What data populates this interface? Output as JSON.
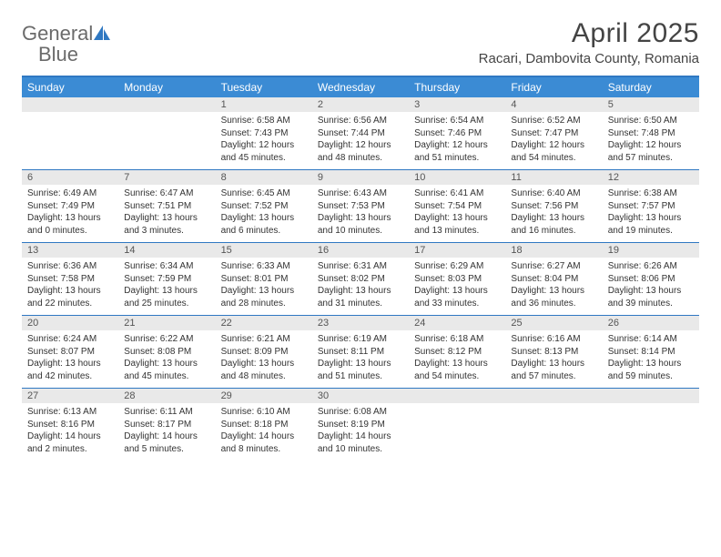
{
  "logo": {
    "text1": "General",
    "text2": "Blue",
    "icon_color": "#2f78c2"
  },
  "title": "April 2025",
  "location": "Racari, Dambovita County, Romania",
  "colors": {
    "header_bg": "#3b8bd4",
    "border": "#2f78c2",
    "daynum_bg": "#e9e9e9",
    "text": "#333333",
    "logo_gray": "#6b6b6b"
  },
  "day_names": [
    "Sunday",
    "Monday",
    "Tuesday",
    "Wednesday",
    "Thursday",
    "Friday",
    "Saturday"
  ],
  "weeks": [
    [
      {
        "n": "",
        "sunrise": "",
        "sunset": "",
        "day1": "",
        "day2": ""
      },
      {
        "n": "",
        "sunrise": "",
        "sunset": "",
        "day1": "",
        "day2": ""
      },
      {
        "n": "1",
        "sunrise": "Sunrise: 6:58 AM",
        "sunset": "Sunset: 7:43 PM",
        "day1": "Daylight: 12 hours",
        "day2": "and 45 minutes."
      },
      {
        "n": "2",
        "sunrise": "Sunrise: 6:56 AM",
        "sunset": "Sunset: 7:44 PM",
        "day1": "Daylight: 12 hours",
        "day2": "and 48 minutes."
      },
      {
        "n": "3",
        "sunrise": "Sunrise: 6:54 AM",
        "sunset": "Sunset: 7:46 PM",
        "day1": "Daylight: 12 hours",
        "day2": "and 51 minutes."
      },
      {
        "n": "4",
        "sunrise": "Sunrise: 6:52 AM",
        "sunset": "Sunset: 7:47 PM",
        "day1": "Daylight: 12 hours",
        "day2": "and 54 minutes."
      },
      {
        "n": "5",
        "sunrise": "Sunrise: 6:50 AM",
        "sunset": "Sunset: 7:48 PM",
        "day1": "Daylight: 12 hours",
        "day2": "and 57 minutes."
      }
    ],
    [
      {
        "n": "6",
        "sunrise": "Sunrise: 6:49 AM",
        "sunset": "Sunset: 7:49 PM",
        "day1": "Daylight: 13 hours",
        "day2": "and 0 minutes."
      },
      {
        "n": "7",
        "sunrise": "Sunrise: 6:47 AM",
        "sunset": "Sunset: 7:51 PM",
        "day1": "Daylight: 13 hours",
        "day2": "and 3 minutes."
      },
      {
        "n": "8",
        "sunrise": "Sunrise: 6:45 AM",
        "sunset": "Sunset: 7:52 PM",
        "day1": "Daylight: 13 hours",
        "day2": "and 6 minutes."
      },
      {
        "n": "9",
        "sunrise": "Sunrise: 6:43 AM",
        "sunset": "Sunset: 7:53 PM",
        "day1": "Daylight: 13 hours",
        "day2": "and 10 minutes."
      },
      {
        "n": "10",
        "sunrise": "Sunrise: 6:41 AM",
        "sunset": "Sunset: 7:54 PM",
        "day1": "Daylight: 13 hours",
        "day2": "and 13 minutes."
      },
      {
        "n": "11",
        "sunrise": "Sunrise: 6:40 AM",
        "sunset": "Sunset: 7:56 PM",
        "day1": "Daylight: 13 hours",
        "day2": "and 16 minutes."
      },
      {
        "n": "12",
        "sunrise": "Sunrise: 6:38 AM",
        "sunset": "Sunset: 7:57 PM",
        "day1": "Daylight: 13 hours",
        "day2": "and 19 minutes."
      }
    ],
    [
      {
        "n": "13",
        "sunrise": "Sunrise: 6:36 AM",
        "sunset": "Sunset: 7:58 PM",
        "day1": "Daylight: 13 hours",
        "day2": "and 22 minutes."
      },
      {
        "n": "14",
        "sunrise": "Sunrise: 6:34 AM",
        "sunset": "Sunset: 7:59 PM",
        "day1": "Daylight: 13 hours",
        "day2": "and 25 minutes."
      },
      {
        "n": "15",
        "sunrise": "Sunrise: 6:33 AM",
        "sunset": "Sunset: 8:01 PM",
        "day1": "Daylight: 13 hours",
        "day2": "and 28 minutes."
      },
      {
        "n": "16",
        "sunrise": "Sunrise: 6:31 AM",
        "sunset": "Sunset: 8:02 PM",
        "day1": "Daylight: 13 hours",
        "day2": "and 31 minutes."
      },
      {
        "n": "17",
        "sunrise": "Sunrise: 6:29 AM",
        "sunset": "Sunset: 8:03 PM",
        "day1": "Daylight: 13 hours",
        "day2": "and 33 minutes."
      },
      {
        "n": "18",
        "sunrise": "Sunrise: 6:27 AM",
        "sunset": "Sunset: 8:04 PM",
        "day1": "Daylight: 13 hours",
        "day2": "and 36 minutes."
      },
      {
        "n": "19",
        "sunrise": "Sunrise: 6:26 AM",
        "sunset": "Sunset: 8:06 PM",
        "day1": "Daylight: 13 hours",
        "day2": "and 39 minutes."
      }
    ],
    [
      {
        "n": "20",
        "sunrise": "Sunrise: 6:24 AM",
        "sunset": "Sunset: 8:07 PM",
        "day1": "Daylight: 13 hours",
        "day2": "and 42 minutes."
      },
      {
        "n": "21",
        "sunrise": "Sunrise: 6:22 AM",
        "sunset": "Sunset: 8:08 PM",
        "day1": "Daylight: 13 hours",
        "day2": "and 45 minutes."
      },
      {
        "n": "22",
        "sunrise": "Sunrise: 6:21 AM",
        "sunset": "Sunset: 8:09 PM",
        "day1": "Daylight: 13 hours",
        "day2": "and 48 minutes."
      },
      {
        "n": "23",
        "sunrise": "Sunrise: 6:19 AM",
        "sunset": "Sunset: 8:11 PM",
        "day1": "Daylight: 13 hours",
        "day2": "and 51 minutes."
      },
      {
        "n": "24",
        "sunrise": "Sunrise: 6:18 AM",
        "sunset": "Sunset: 8:12 PM",
        "day1": "Daylight: 13 hours",
        "day2": "and 54 minutes."
      },
      {
        "n": "25",
        "sunrise": "Sunrise: 6:16 AM",
        "sunset": "Sunset: 8:13 PM",
        "day1": "Daylight: 13 hours",
        "day2": "and 57 minutes."
      },
      {
        "n": "26",
        "sunrise": "Sunrise: 6:14 AM",
        "sunset": "Sunset: 8:14 PM",
        "day1": "Daylight: 13 hours",
        "day2": "and 59 minutes."
      }
    ],
    [
      {
        "n": "27",
        "sunrise": "Sunrise: 6:13 AM",
        "sunset": "Sunset: 8:16 PM",
        "day1": "Daylight: 14 hours",
        "day2": "and 2 minutes."
      },
      {
        "n": "28",
        "sunrise": "Sunrise: 6:11 AM",
        "sunset": "Sunset: 8:17 PM",
        "day1": "Daylight: 14 hours",
        "day2": "and 5 minutes."
      },
      {
        "n": "29",
        "sunrise": "Sunrise: 6:10 AM",
        "sunset": "Sunset: 8:18 PM",
        "day1": "Daylight: 14 hours",
        "day2": "and 8 minutes."
      },
      {
        "n": "30",
        "sunrise": "Sunrise: 6:08 AM",
        "sunset": "Sunset: 8:19 PM",
        "day1": "Daylight: 14 hours",
        "day2": "and 10 minutes."
      },
      {
        "n": "",
        "sunrise": "",
        "sunset": "",
        "day1": "",
        "day2": ""
      },
      {
        "n": "",
        "sunrise": "",
        "sunset": "",
        "day1": "",
        "day2": ""
      },
      {
        "n": "",
        "sunrise": "",
        "sunset": "",
        "day1": "",
        "day2": ""
      }
    ]
  ]
}
